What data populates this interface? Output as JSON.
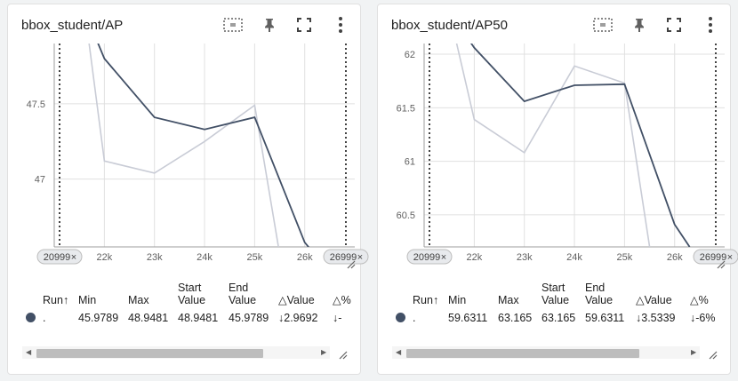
{
  "colors": {
    "dark_series": "#425066",
    "light_series": "#c9ccd6",
    "grid": "#e0e0e0",
    "accent": "#425066"
  },
  "icons": [
    "fit-domain-icon",
    "pin-icon",
    "fullscreen-icon",
    "more-vert-icon"
  ],
  "table_headers": {
    "run": "Run",
    "sort": "↑",
    "min": "Min",
    "max": "Max",
    "start1": "Start",
    "start2": "Value",
    "end1": "End",
    "end2": "Value",
    "delta_value": "Value",
    "delta_pct": "%",
    "delta": "△"
  },
  "cards": [
    {
      "title": "bbox_student/AP",
      "range_start": "20999",
      "range_end": "26999",
      "row": {
        "run": ".",
        "min": "45.9789",
        "max": "48.9481",
        "start": "48.9481",
        "end": "45.9789",
        "delta_value": "↓2.9692",
        "delta_pct": "↓-"
      }
    },
    {
      "title": "bbox_student/AP50",
      "range_start": "20999",
      "range_end": "26999",
      "row": {
        "run": ".",
        "min": "59.6311",
        "max": "63.165",
        "start": "63.165",
        "end": "59.6311",
        "delta_value": "↓3.5339",
        "delta_pct": "↓-6%"
      }
    }
  ],
  "chart_data": [
    {
      "type": "line",
      "title": "bbox_student/AP",
      "x_ticks": [
        "22k",
        "23k",
        "24k",
        "25k",
        "26k"
      ],
      "y_ticks": [
        "47.5",
        "47"
      ],
      "xlim": [
        20999,
        26999
      ],
      "ylim": [
        46.55,
        47.9
      ],
      "grid": true,
      "series": [
        {
          "color": "#425066",
          "points": [
            [
              21500,
              48.2
            ],
            [
              22000,
              47.8
            ],
            [
              23000,
              47.41
            ],
            [
              24000,
              47.33
            ],
            [
              25000,
              47.41
            ],
            [
              26000,
              46.58
            ],
            [
              26200,
              46.5
            ]
          ]
        },
        {
          "color": "#c9ccd6",
          "points": [
            [
              21500,
              48.4
            ],
            [
              22000,
              47.12
            ],
            [
              23000,
              47.04
            ],
            [
              24000,
              47.25
            ],
            [
              25000,
              47.49
            ],
            [
              25500,
              46.5
            ]
          ]
        }
      ]
    },
    {
      "type": "line",
      "title": "bbox_student/AP50",
      "x_ticks": [
        "22k",
        "23k",
        "24k",
        "25k",
        "26k"
      ],
      "y_ticks": [
        "62",
        "61.5",
        "61",
        "60.5"
      ],
      "xlim": [
        20999,
        26999
      ],
      "ylim": [
        60.2,
        62.1
      ],
      "grid": true,
      "series": [
        {
          "color": "#425066",
          "points": [
            [
              21500,
              62.4
            ],
            [
              22000,
              62.06
            ],
            [
              23000,
              61.56
            ],
            [
              24000,
              61.71
            ],
            [
              25000,
              61.72
            ],
            [
              26000,
              60.41
            ],
            [
              26300,
              60.2
            ]
          ]
        },
        {
          "color": "#c9ccd6",
          "points": [
            [
              21500,
              62.4
            ],
            [
              22000,
              61.39
            ],
            [
              23000,
              61.08
            ],
            [
              24000,
              61.89
            ],
            [
              25000,
              61.73
            ],
            [
              25500,
              60.2
            ]
          ]
        }
      ]
    }
  ]
}
